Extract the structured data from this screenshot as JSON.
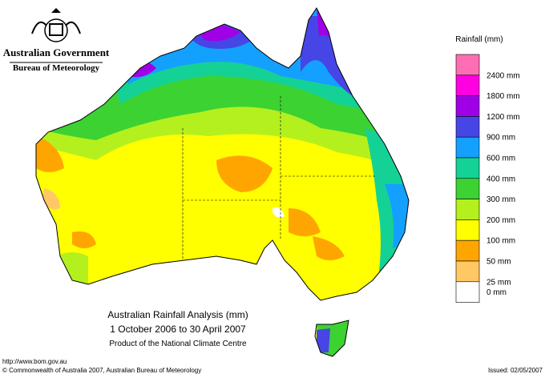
{
  "header": {
    "agency": "Australian Government",
    "bureau": "Bureau of Meteorology"
  },
  "legend": {
    "title": "Rainfall (mm)",
    "entries": [
      {
        "label": "2400 mm",
        "color": "#ff6eb4"
      },
      {
        "label": "1800 mm",
        "color": "#ff00e0"
      },
      {
        "label": "1200 mm",
        "color": "#a000e6"
      },
      {
        "label": "900 mm",
        "color": "#4646e6"
      },
      {
        "label": "600 mm",
        "color": "#14a0ff"
      },
      {
        "label": "400 mm",
        "color": "#14d296"
      },
      {
        "label": "300 mm",
        "color": "#3cd232"
      },
      {
        "label": "200 mm",
        "color": "#b4f01e"
      },
      {
        "label": "100 mm",
        "color": "#ffff00"
      },
      {
        "label": "50 mm",
        "color": "#ffa500"
      },
      {
        "label": "25 mm",
        "color": "#ffc864"
      },
      {
        "label": "0 mm",
        "color": "#ffffff"
      }
    ]
  },
  "caption": {
    "title": "Australian Rainfall Analysis (mm)",
    "period": "1 October 2006 to 30 April 2007",
    "product": "Product of the National Climate Centre"
  },
  "footer": {
    "url": "http://www.bom.gov.au",
    "copyright": "© Commonwealth of Australia 2007, Australian Bureau of Meteorology",
    "issued": "Issued: 02/05/2007"
  }
}
